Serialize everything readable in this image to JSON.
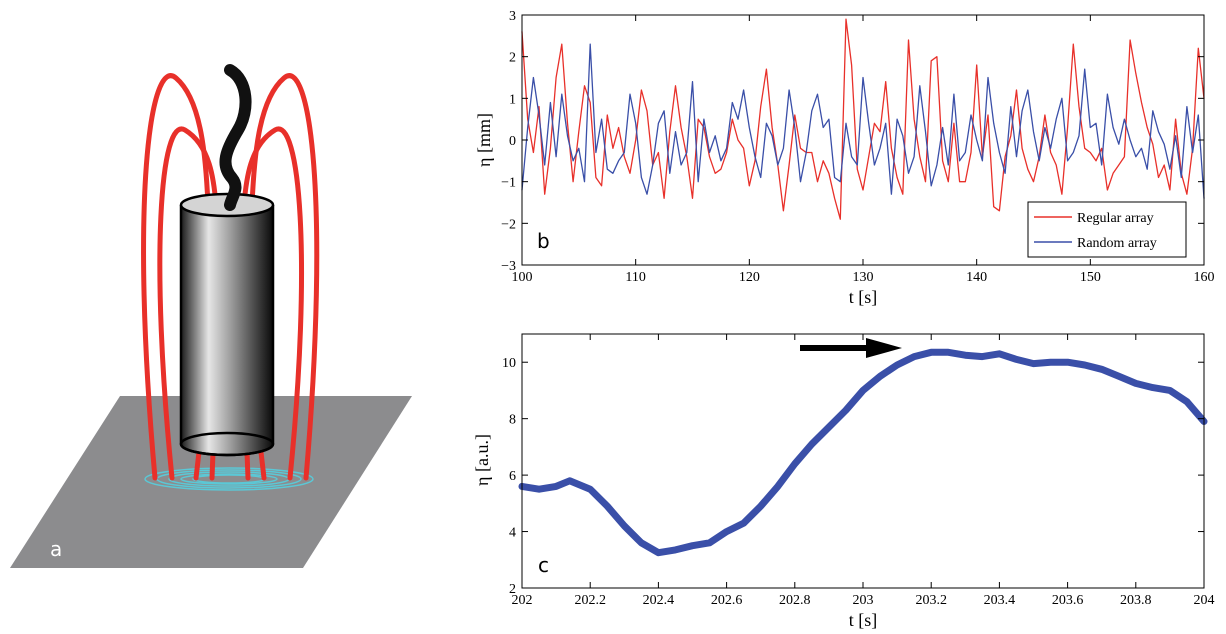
{
  "panels": {
    "a": {
      "letter": "a"
    },
    "b": {
      "letter": "b"
    },
    "c": {
      "letter": "c"
    }
  },
  "colors": {
    "regular": "#e8302a",
    "random": "#3a4fa8",
    "plate": "#8c8c8e",
    "field_lines": "#e8302a",
    "ripples": "#5bc8d6",
    "cable": "#111111"
  },
  "chart_data": [
    {
      "panel": "b",
      "type": "line",
      "xlabel": "t [s]",
      "ylabel": "η [mm]",
      "xlim": [
        100,
        160
      ],
      "ylim": [
        -3,
        3
      ],
      "xticks": [
        100,
        110,
        120,
        130,
        140,
        150,
        160
      ],
      "yticks": [
        -3,
        -2,
        -1,
        0,
        1,
        2,
        3
      ],
      "legend_position": "bottom-right",
      "series": [
        {
          "name": "Regular array",
          "color": "#e8302a",
          "x": [
            100,
            100.5,
            101,
            101.5,
            102,
            102.5,
            103,
            103.5,
            104,
            104.5,
            105,
            105.5,
            106,
            106.5,
            107,
            107.5,
            108,
            108.5,
            109,
            109.5,
            110,
            110.5,
            111,
            111.5,
            112,
            112.5,
            113,
            113.5,
            114,
            114.5,
            115,
            115.5,
            116,
            116.5,
            117,
            117.5,
            118,
            118.5,
            119,
            119.5,
            120,
            120.5,
            121,
            121.5,
            122,
            122.5,
            123,
            123.5,
            124,
            124.5,
            125,
            125.5,
            126,
            126.5,
            127,
            127.5,
            128,
            128.5,
            129,
            129.5,
            130,
            130.5,
            131,
            131.5,
            132,
            132.5,
            133,
            133.5,
            134,
            134.5,
            135,
            135.5,
            136,
            136.5,
            137,
            137.5,
            138,
            138.5,
            139,
            139.5,
            140,
            140.5,
            141,
            141.5,
            142,
            142.5,
            143,
            143.5,
            144,
            144.5,
            145,
            145.5,
            146,
            146.5,
            147,
            147.5,
            148,
            148.5,
            149,
            149.5,
            150,
            150.5,
            151,
            151.5,
            152,
            152.5,
            153,
            153.5,
            154,
            154.5,
            155,
            155.5,
            156,
            156.5,
            157,
            157.5,
            158,
            158.5,
            159,
            159.5,
            160
          ],
          "y": [
            2.6,
            0.5,
            -0.3,
            0.8,
            -1.3,
            -0.2,
            1.5,
            2.3,
            0.4,
            -1.0,
            0.2,
            1.3,
            0.9,
            -0.9,
            -1.1,
            0.6,
            -0.2,
            0.3,
            -0.4,
            -0.8,
            0.0,
            1.2,
            0.7,
            -0.6,
            -0.3,
            -1.4,
            0.2,
            1.3,
            0.3,
            -0.4,
            -1.4,
            0.5,
            0.3,
            -0.4,
            -0.8,
            -0.7,
            -0.3,
            0.5,
            0.0,
            -0.2,
            -1.1,
            -0.5,
            0.8,
            1.7,
            0.3,
            -0.6,
            -1.7,
            -0.6,
            0.6,
            -0.2,
            -0.3,
            -0.3,
            -1.0,
            -0.5,
            -0.8,
            -1.4,
            -1.9,
            2.9,
            1.8,
            -0.7,
            -1.2,
            -0.4,
            0.4,
            0.2,
            1.4,
            -0.2,
            -0.9,
            -1.3,
            2.4,
            0.5,
            -0.4,
            -1.0,
            1.9,
            2.0,
            -0.5,
            -1.0,
            0.4,
            -1.0,
            -1.0,
            -0.3,
            1.8,
            -0.4,
            0.6,
            -1.6,
            -1.7,
            -0.4,
            0.1,
            1.2,
            -0.2,
            -0.7,
            -1.0,
            -0.4,
            0.6,
            -0.3,
            -0.6,
            -1.3,
            0.3,
            2.3,
            0.8,
            -0.2,
            -0.3,
            -0.5,
            -0.2,
            -1.2,
            -0.8,
            -0.6,
            -0.4,
            2.4,
            1.6,
            0.9,
            0.3,
            -0.1,
            -0.9,
            -0.6,
            -1.2,
            0.5,
            -0.8,
            -1.3,
            -0.2,
            2.2,
            1.0
          ]
        },
        {
          "name": "Random array",
          "color": "#3a4fa8",
          "x": [
            100,
            100.5,
            101,
            101.5,
            102,
            102.5,
            103,
            103.5,
            104,
            104.5,
            105,
            105.5,
            106,
            106.5,
            107,
            107.5,
            108,
            108.5,
            109,
            109.5,
            110,
            110.5,
            111,
            111.5,
            112,
            112.5,
            113,
            113.5,
            114,
            114.5,
            115,
            115.5,
            116,
            116.5,
            117,
            117.5,
            118,
            118.5,
            119,
            119.5,
            120,
            120.5,
            121,
            121.5,
            122,
            122.5,
            123,
            123.5,
            124,
            124.5,
            125,
            125.5,
            126,
            126.5,
            127,
            127.5,
            128,
            128.5,
            129,
            129.5,
            130,
            130.5,
            131,
            131.5,
            132,
            132.5,
            133,
            133.5,
            134,
            134.5,
            135,
            135.5,
            136,
            136.5,
            137,
            137.5,
            138,
            138.5,
            139,
            139.5,
            140,
            140.5,
            141,
            141.5,
            142,
            142.5,
            143,
            143.5,
            144,
            144.5,
            145,
            145.5,
            146,
            146.5,
            147,
            147.5,
            148,
            148.5,
            149,
            149.5,
            150,
            150.5,
            151,
            151.5,
            152,
            152.5,
            153,
            153.5,
            154,
            154.5,
            155,
            155.5,
            156,
            156.5,
            157,
            157.5,
            158,
            158.5,
            159,
            159.5,
            160
          ],
          "y": [
            -1.2,
            0.3,
            1.5,
            0.6,
            -0.6,
            0.9,
            -0.4,
            1.1,
            0.1,
            -0.5,
            -0.2,
            -1.0,
            2.3,
            -0.3,
            0.5,
            -0.7,
            -0.8,
            -0.5,
            -0.3,
            1.1,
            0.4,
            -0.9,
            -1.3,
            -0.6,
            0.4,
            0.7,
            -0.8,
            0.2,
            -0.6,
            -0.3,
            1.4,
            -1.0,
            0.5,
            -0.3,
            0.1,
            -0.5,
            -0.2,
            0.9,
            0.5,
            1.2,
            0.3,
            -0.4,
            -0.9,
            0.4,
            0.1,
            -0.6,
            -0.2,
            1.2,
            0.3,
            -1.0,
            -0.3,
            0.7,
            1.1,
            0.3,
            0.5,
            -0.9,
            -1.0,
            0.4,
            -0.4,
            -0.6,
            1.5,
            0.4,
            -0.6,
            -0.2,
            0.4,
            -1.3,
            0.5,
            0.1,
            -0.8,
            -0.4,
            1.3,
            0.2,
            -1.1,
            -0.6,
            0.3,
            -0.6,
            1.1,
            -0.5,
            -0.3,
            0.6,
            0.0,
            -0.5,
            1.5,
            0.4,
            -0.3,
            -0.8,
            0.8,
            -0.4,
            0.7,
            1.2,
            0.2,
            -0.5,
            0.3,
            -0.2,
            0.5,
            1.0,
            -0.5,
            -0.3,
            0.1,
            1.7,
            0.3,
            0.4,
            -0.6,
            1.1,
            0.3,
            -0.1,
            0.5,
            0.0,
            -0.4,
            -0.2,
            -0.7,
            0.7,
            0.2,
            -0.1,
            -0.7,
            0.1,
            -0.9,
            0.8,
            -0.3,
            0.6,
            -1.4
          ]
        }
      ]
    },
    {
      "panel": "c",
      "type": "line",
      "xlabel": "t [s]",
      "ylabel": "η [a.u.]",
      "xlim": [
        202,
        204
      ],
      "ylim": [
        2,
        11
      ],
      "xticks": [
        202,
        202.2,
        202.4,
        202.6,
        202.8,
        203,
        203.2,
        203.4,
        203.6,
        203.8,
        204
      ],
      "yticks": [
        2,
        4,
        6,
        8,
        10
      ],
      "annotation": "arrow pointing right toward maximum near t = 203.2 s",
      "series": [
        {
          "color": "#3a4fa8",
          "x": [
            202,
            202.05,
            202.1,
            202.14,
            202.2,
            202.25,
            202.3,
            202.35,
            202.4,
            202.45,
            202.5,
            202.55,
            202.6,
            202.65,
            202.7,
            202.75,
            202.8,
            202.85,
            202.9,
            202.95,
            203,
            203.05,
            203.1,
            203.15,
            203.2,
            203.25,
            203.3,
            203.35,
            203.4,
            203.45,
            203.5,
            203.55,
            203.6,
            203.65,
            203.7,
            203.75,
            203.8,
            203.85,
            203.9,
            203.95,
            204
          ],
          "y": [
            5.6,
            5.5,
            5.6,
            5.8,
            5.5,
            4.9,
            4.2,
            3.6,
            3.25,
            3.35,
            3.5,
            3.6,
            4.0,
            4.3,
            4.9,
            5.6,
            6.4,
            7.1,
            7.7,
            8.3,
            9.0,
            9.5,
            9.9,
            10.2,
            10.35,
            10.35,
            10.25,
            10.2,
            10.3,
            10.1,
            9.95,
            10.0,
            10.0,
            9.9,
            9.75,
            9.5,
            9.25,
            9.1,
            9.0,
            8.6,
            7.9
          ]
        }
      ]
    }
  ]
}
